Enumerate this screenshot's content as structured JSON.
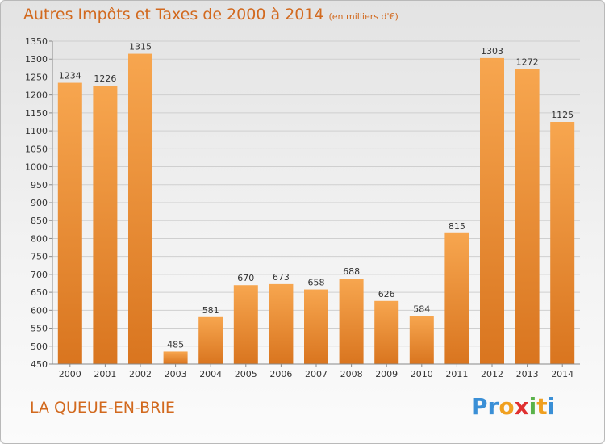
{
  "chart_data": {
    "type": "bar",
    "title": "Autres Impôts et Taxes de 2000 à 2014",
    "subtitle": "(en milliers d'€)",
    "categories": [
      "2000",
      "2001",
      "2002",
      "2003",
      "2004",
      "2005",
      "2006",
      "2007",
      "2008",
      "2009",
      "2010",
      "2011",
      "2012",
      "2013",
      "2014"
    ],
    "values": [
      1234,
      1226,
      1315,
      485,
      581,
      670,
      673,
      658,
      688,
      626,
      584,
      815,
      1303,
      1272,
      1125
    ],
    "data_labels": [
      "1234",
      "1226",
      "1315",
      "485",
      "581",
      "670",
      "673",
      "658",
      "688",
      "626",
      "584",
      "815",
      "1303",
      "1272",
      "1125"
    ],
    "ylim": [
      450,
      1350
    ],
    "yticks": [
      450,
      500,
      550,
      600,
      650,
      700,
      750,
      800,
      850,
      900,
      950,
      1000,
      1050,
      1100,
      1150,
      1200,
      1250,
      1300,
      1350
    ],
    "grid": true,
    "colors": {
      "bar_light": "#f7a64f",
      "bar_dark": "#d9751f",
      "text": "#d2691e"
    }
  },
  "commune": "LA QUEUE-EN-BRIE",
  "logo": {
    "text": "Proxiti",
    "letters": [
      {
        "ch": "P",
        "cls": "p"
      },
      {
        "ch": "r",
        "cls": "r"
      },
      {
        "ch": "o",
        "cls": "o"
      },
      {
        "ch": "x",
        "cls": "x"
      },
      {
        "ch": "i",
        "cls": "i"
      },
      {
        "ch": "t",
        "cls": "t"
      },
      {
        "ch": "i",
        "cls": "i2"
      }
    ]
  }
}
